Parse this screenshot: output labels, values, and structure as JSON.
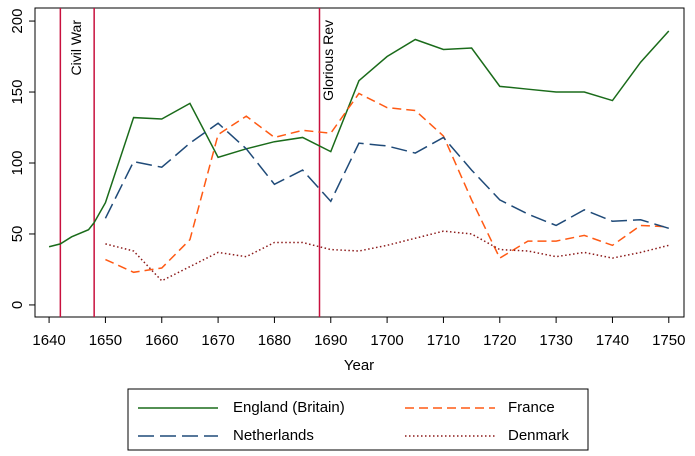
{
  "chart_data": {
    "type": "line",
    "xlabel": "Year",
    "x": [
      1640,
      1642,
      1644,
      1647,
      1648,
      1650,
      1655,
      1660,
      1665,
      1670,
      1675,
      1680,
      1685,
      1690,
      1695,
      1700,
      1705,
      1710,
      1715,
      1720,
      1725,
      1730,
      1735,
      1740,
      1745,
      1750
    ],
    "series": [
      {
        "name": "England (Britain)",
        "color": "#1a6b1a",
        "style": "solid",
        "values": [
          41,
          43,
          48,
          53,
          58,
          72,
          132,
          131,
          142,
          104,
          110,
          115,
          118,
          108,
          158,
          175,
          187,
          180,
          181,
          154,
          152,
          150,
          150,
          144,
          171,
          193
        ]
      },
      {
        "name": "France",
        "color": "#ff5a14",
        "style": "dash",
        "values": [
          null,
          null,
          null,
          null,
          null,
          32,
          23,
          26,
          46,
          120,
          133,
          118,
          123,
          121,
          149,
          139,
          137,
          119,
          74,
          33,
          45,
          45,
          49,
          42,
          56,
          55
        ]
      },
      {
        "name": "Netherlands",
        "color": "#1f4a78",
        "style": "longdash",
        "values": [
          null,
          null,
          null,
          null,
          null,
          61,
          101,
          97,
          114,
          128,
          110,
          85,
          95,
          73,
          114,
          112,
          107,
          118,
          95,
          74,
          64,
          56,
          67,
          59,
          60,
          54
        ]
      },
      {
        "name": "Denmark",
        "color": "#8b1a1a",
        "style": "dot",
        "values": [
          null,
          null,
          null,
          null,
          null,
          43,
          38,
          17,
          27,
          37,
          34,
          44,
          44,
          39,
          38,
          42,
          47,
          52,
          50,
          39,
          38,
          34,
          37,
          33,
          37,
          42
        ]
      }
    ],
    "vlines": [
      1642,
      1648,
      1688
    ],
    "vline_color": "#c8103e",
    "annotations": [
      "Civil War",
      "Glorious Rev"
    ],
    "xlim": [
      1637.5,
      1752.7
    ],
    "xticks": [
      1640,
      1650,
      1660,
      1670,
      1680,
      1690,
      1700,
      1710,
      1720,
      1730,
      1740,
      1750
    ],
    "ylim": [
      -8.5,
      209.2
    ],
    "yticks": [
      0,
      50,
      100,
      150,
      200
    ],
    "grid": false,
    "legend": "bottom"
  }
}
